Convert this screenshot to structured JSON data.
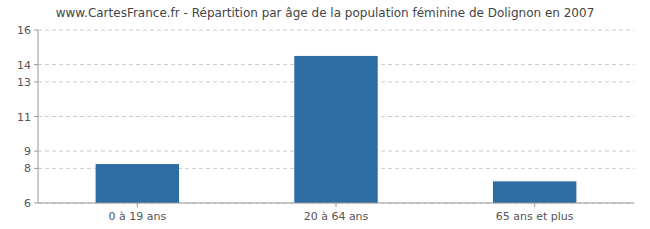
{
  "chart_data": {
    "type": "bar",
    "title": "www.CartesFrance.fr - Répartition par âge de la population féminine de Dolignon en 2007",
    "categories": [
      "0 à 19 ans",
      "20 à 64 ans",
      "65 ans et plus"
    ],
    "values": [
      8.25,
      14.5,
      7.25
    ],
    "color": "#2e6da4",
    "ylim": [
      6,
      16
    ],
    "yticks": [
      6,
      8,
      9,
      11,
      13,
      14,
      16
    ],
    "grid": true
  }
}
